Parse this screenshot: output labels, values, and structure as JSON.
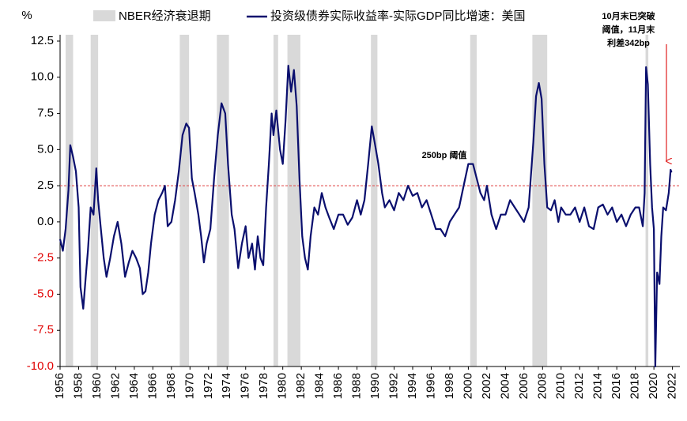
{
  "chart_data": {
    "type": "line",
    "y_unit": "%",
    "legend": {
      "shade": "NBER经济衰退期",
      "line": "投资级债券实际收益率-实际GDP同比增速：美国"
    },
    "shade_color": "#d9d9d9",
    "shaded_periods": [
      [
        1956.6,
        1957.4
      ],
      [
        1959.3,
        1960.1
      ],
      [
        1968.9,
        1969.9
      ],
      [
        1972.9,
        1974.2
      ],
      [
        1979.0,
        1979.5
      ],
      [
        1980.5,
        1981.9
      ],
      [
        1989.5,
        1990.2
      ],
      [
        2000.2,
        2000.9
      ],
      [
        2006.9,
        2008.5
      ],
      [
        2019.1,
        2019.4
      ]
    ],
    "series": [
      {
        "name": "投资级债券实际收益率-实际GDP同比增速：美国",
        "color": "#0a0f6e",
        "x": [
          1956.0,
          1956.3,
          1956.6,
          1956.9,
          1957.1,
          1957.4,
          1957.7,
          1958.0,
          1958.2,
          1958.5,
          1958.8,
          1959.0,
          1959.3,
          1959.6,
          1959.9,
          1960.1,
          1960.4,
          1960.7,
          1961.0,
          1961.4,
          1961.8,
          1962.2,
          1962.6,
          1963.0,
          1963.4,
          1963.8,
          1964.2,
          1964.6,
          1964.9,
          1965.2,
          1965.5,
          1965.8,
          1966.2,
          1966.6,
          1967.0,
          1967.3,
          1967.6,
          1968.0,
          1968.4,
          1968.8,
          1969.2,
          1969.6,
          1969.9,
          1970.2,
          1970.5,
          1970.9,
          1971.2,
          1971.5,
          1971.8,
          1972.2,
          1972.6,
          1973.0,
          1973.4,
          1973.8,
          1974.1,
          1974.5,
          1974.8,
          1975.2,
          1975.6,
          1976.0,
          1976.3,
          1976.7,
          1977.0,
          1977.3,
          1977.6,
          1977.9,
          1978.2,
          1978.5,
          1978.8,
          1979.0,
          1979.3,
          1979.7,
          1980.0,
          1980.3,
          1980.6,
          1980.9,
          1981.2,
          1981.5,
          1981.8,
          1982.1,
          1982.4,
          1982.7,
          1983.0,
          1983.4,
          1983.8,
          1984.2,
          1984.6,
          1985.0,
          1985.5,
          1986.0,
          1986.5,
          1987.0,
          1987.5,
          1988.0,
          1988.4,
          1988.8,
          1989.2,
          1989.6,
          1989.9,
          1990.3,
          1990.7,
          1991.0,
          1991.5,
          1992.0,
          1992.5,
          1993.0,
          1993.5,
          1994.0,
          1994.5,
          1995.0,
          1995.5,
          1996.0,
          1996.5,
          1997.0,
          1997.5,
          1998.0,
          1998.5,
          1999.0,
          1999.5,
          2000.0,
          2000.5,
          2000.9,
          2001.3,
          2001.7,
          2002.0,
          2002.5,
          2003.0,
          2003.5,
          2004.0,
          2004.5,
          2005.0,
          2005.5,
          2006.0,
          2006.5,
          2007.0,
          2007.3,
          2007.6,
          2007.9,
          2008.2,
          2008.5,
          2008.9,
          2009.3,
          2009.7,
          2010.0,
          2010.5,
          2011.0,
          2011.5,
          2012.0,
          2012.5,
          2013.0,
          2013.5,
          2014.0,
          2014.5,
          2015.0,
          2015.5,
          2016.0,
          2016.5,
          2017.0,
          2017.5,
          2018.0,
          2018.4,
          2018.8,
          2019.0,
          2019.15,
          2019.35,
          2019.6,
          2019.8,
          2020.0,
          2020.15,
          2020.35,
          2020.6,
          2020.8,
          2021.0,
          2021.3,
          2021.6,
          2021.8,
          2021.9
        ],
        "values": [
          -1.2,
          -2.0,
          -0.5,
          2.2,
          5.3,
          4.5,
          3.5,
          1.0,
          -4.5,
          -6.0,
          -3.5,
          -2.0,
          1.0,
          0.5,
          3.7,
          1.5,
          -0.5,
          -2.5,
          -3.8,
          -2.5,
          -1.0,
          0.0,
          -1.5,
          -3.8,
          -2.8,
          -2.0,
          -2.5,
          -3.2,
          -5.0,
          -4.8,
          -3.5,
          -1.5,
          0.5,
          1.5,
          2.0,
          2.5,
          -0.3,
          0.0,
          1.5,
          3.5,
          6.0,
          6.8,
          6.5,
          3.0,
          2.0,
          0.5,
          -1.0,
          -2.8,
          -1.5,
          -0.5,
          3.0,
          6.0,
          8.2,
          7.5,
          4.0,
          0.5,
          -0.5,
          -3.2,
          -1.5,
          -0.3,
          -2.5,
          -1.5,
          -3.3,
          -1.0,
          -2.5,
          -3.0,
          1.0,
          4.0,
          7.5,
          6.0,
          7.7,
          5.0,
          4.0,
          7.0,
          10.8,
          9.0,
          10.5,
          8.0,
          3.0,
          -1.0,
          -2.5,
          -3.3,
          -1.0,
          1.0,
          0.5,
          2.0,
          1.0,
          0.3,
          -0.5,
          0.5,
          0.5,
          -0.2,
          0.3,
          1.5,
          0.5,
          1.5,
          4.0,
          6.6,
          5.5,
          4.0,
          2.0,
          1.0,
          1.5,
          0.8,
          2.0,
          1.5,
          2.5,
          1.8,
          2.0,
          1.0,
          1.5,
          0.5,
          -0.5,
          -0.5,
          -1.0,
          0.0,
          0.5,
          1.0,
          2.5,
          4.0,
          4.0,
          3.0,
          2.0,
          1.5,
          2.5,
          0.5,
          -0.5,
          0.5,
          0.5,
          1.5,
          1.0,
          0.5,
          0.0,
          1.0,
          5.5,
          8.7,
          9.6,
          8.5,
          4.0,
          1.0,
          0.8,
          1.5,
          0.0,
          1.0,
          0.5,
          0.5,
          1.0,
          0.0,
          1.0,
          -0.3,
          -0.5,
          1.0,
          1.2,
          0.5,
          1.0,
          0.0,
          0.5,
          -0.3,
          0.5,
          1.0,
          1.0,
          -0.3,
          2.0,
          10.7,
          9.5,
          4.0,
          1.0,
          -0.5,
          -10.0,
          -3.5,
          -4.3,
          -1.0,
          1.0,
          0.8,
          2.0,
          3.6,
          3.42
        ]
      }
    ],
    "threshold": {
      "value": 2.5,
      "color": "#e04040",
      "label": "250bp 阈值"
    },
    "annotation_lines": [
      "10月末已突破",
      "阈值，11月末",
      "利差342bp"
    ],
    "annotation_color": "#e02020",
    "negative_tick_color": "#e00000",
    "xlim": [
      1956,
      2022.8
    ],
    "xticks": [
      1956,
      1958,
      1960,
      1962,
      1964,
      1966,
      1968,
      1970,
      1972,
      1974,
      1976,
      1978,
      1980,
      1982,
      1984,
      1986,
      1988,
      1990,
      1992,
      1994,
      1996,
      1998,
      2000,
      2002,
      2004,
      2006,
      2008,
      2010,
      2012,
      2014,
      2016,
      2018,
      2020,
      2022
    ],
    "ylim": [
      -10,
      12.5
    ],
    "yticks": [
      12.5,
      {
        "value": 10,
        "label": "10.0"
      },
      7.5,
      {
        "value": 5,
        "label": "5.0"
      },
      2.5,
      {
        "value": 0,
        "label": "0.0"
      },
      -2.5,
      {
        "value": -5,
        "label": "-5.0"
      },
      -7.5,
      {
        "value": -10,
        "label": "-10.0"
      }
    ]
  }
}
